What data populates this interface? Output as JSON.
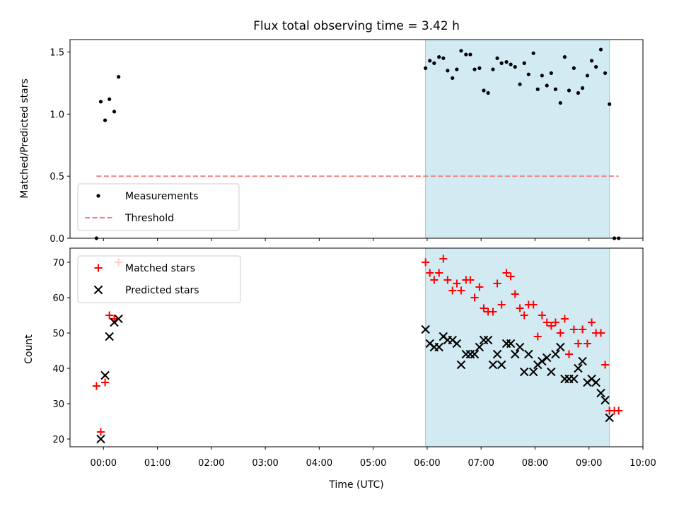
{
  "chart_data": {
    "title": "Flux total observing time = 3.42 h",
    "xlabel": "Time (UTC)",
    "x_tick_labels": [
      "00:00",
      "01:00",
      "02:00",
      "03:00",
      "04:00",
      "05:00",
      "06:00",
      "07:00",
      "08:00",
      "09:00",
      "10:00"
    ],
    "x_ticks_hours": [
      0,
      1,
      2,
      3,
      4,
      5,
      6,
      7,
      8,
      9,
      10
    ],
    "xlim_hours": [
      -0.62,
      10.0
    ],
    "shaded_interval_hours": [
      5.97,
      9.38
    ],
    "shade_color": "#add8e6",
    "panels": [
      {
        "type": "scatter",
        "ylabel": "Matched/Predicted stars",
        "ylim": [
          0,
          1.6
        ],
        "yticks": [
          0.0,
          0.5,
          1.0,
          1.5
        ],
        "ytick_labels": [
          "0.0",
          "0.5",
          "1.0",
          "1.5"
        ],
        "legend_position": "lower-left",
        "series": [
          {
            "name": "Measurements",
            "marker": "dot",
            "color": "#000000",
            "x": [
              -0.13,
              -0.05,
              0.03,
              0.11,
              0.2,
              0.28,
              9.47,
              9.55,
              5.97,
              6.05,
              6.13,
              6.22,
              6.3,
              6.38,
              6.47,
              6.55,
              6.63,
              6.72,
              6.8,
              6.88,
              6.97,
              7.05,
              7.13,
              7.22,
              7.3,
              7.38,
              7.47,
              7.55,
              7.63,
              7.72,
              7.8,
              7.88,
              7.97,
              8.05,
              8.13,
              8.22,
              8.3,
              8.38,
              8.47,
              8.55,
              8.63,
              8.72,
              8.8,
              8.88,
              8.97,
              9.05,
              9.13,
              9.22,
              9.3,
              9.38
            ],
            "y": [
              0.0,
              1.1,
              0.95,
              1.12,
              1.02,
              1.3,
              0.0,
              0.0,
              1.37,
              1.43,
              1.41,
              1.46,
              1.45,
              1.35,
              1.29,
              1.36,
              1.51,
              1.48,
              1.48,
              1.36,
              1.37,
              1.19,
              1.17,
              1.36,
              1.45,
              1.41,
              1.42,
              1.4,
              1.38,
              1.24,
              1.41,
              1.32,
              1.49,
              1.2,
              1.31,
              1.23,
              1.33,
              1.2,
              1.09,
              1.46,
              1.19,
              1.37,
              1.17,
              1.21,
              1.31,
              1.43,
              1.38,
              1.52,
              1.33,
              1.08
            ]
          },
          {
            "name": "Threshold",
            "type": "line",
            "dash": "dashed",
            "color": "#f08080",
            "x": [
              -0.13,
              9.55
            ],
            "y": [
              0.5,
              0.5
            ]
          }
        ]
      },
      {
        "type": "scatter",
        "ylabel": "Count",
        "ylim": [
          17.8,
          74
        ],
        "yticks": [
          20,
          30,
          40,
          50,
          60,
          70
        ],
        "ytick_labels": [
          "20",
          "30",
          "40",
          "50",
          "60",
          "70"
        ],
        "legend_position": "upper-left",
        "series": [
          {
            "name": "Matched stars",
            "marker": "plus",
            "color": "#ff0000",
            "x": [
              -0.13,
              -0.05,
              0.03,
              0.11,
              0.2,
              0.28,
              5.97,
              6.05,
              6.13,
              6.22,
              6.3,
              6.38,
              6.47,
              6.55,
              6.63,
              6.72,
              6.8,
              6.88,
              6.97,
              7.05,
              7.13,
              7.22,
              7.3,
              7.38,
              7.47,
              7.55,
              7.63,
              7.72,
              7.8,
              7.88,
              7.97,
              8.05,
              8.13,
              8.22,
              8.3,
              8.38,
              8.47,
              8.55,
              8.63,
              8.72,
              8.8,
              8.88,
              8.97,
              9.05,
              9.13,
              9.22,
              9.3,
              9.38,
              9.47,
              9.55
            ],
            "y": [
              35,
              22,
              36,
              55,
              54,
              70,
              70,
              67,
              65,
              67,
              71,
              65,
              62,
              64,
              62,
              65,
              65,
              60,
              63,
              57,
              56,
              56,
              64,
              58,
              67,
              66,
              61,
              57,
              55,
              58,
              58,
              49,
              55,
              53,
              52,
              53,
              50,
              54,
              44,
              51,
              47,
              51,
              47,
              53,
              50,
              50,
              41,
              28,
              28,
              28
            ]
          },
          {
            "name": "Predicted stars",
            "marker": "x",
            "color": "#000000",
            "x": [
              -0.05,
              0.03,
              0.11,
              0.2,
              0.28,
              5.97,
              6.05,
              6.13,
              6.22,
              6.3,
              6.38,
              6.47,
              6.55,
              6.63,
              6.72,
              6.8,
              6.88,
              6.97,
              7.05,
              7.13,
              7.22,
              7.3,
              7.38,
              7.47,
              7.55,
              7.63,
              7.72,
              7.8,
              7.88,
              7.97,
              8.05,
              8.13,
              8.22,
              8.3,
              8.38,
              8.47,
              8.55,
              8.63,
              8.72,
              8.8,
              8.88,
              8.97,
              9.05,
              9.13,
              9.22,
              9.3,
              9.38
            ],
            "y": [
              20,
              38,
              49,
              53,
              54,
              51,
              47,
              46,
              46,
              49,
              48,
              48,
              47,
              41,
              44,
              44,
              44,
              46,
              48,
              48,
              41,
              44,
              41,
              47,
              47,
              44,
              46,
              39,
              44,
              39,
              41,
              42,
              43,
              39,
              44,
              46,
              37,
              37,
              37,
              40,
              42,
              36,
              37,
              36,
              33,
              31,
              26
            ]
          }
        ]
      }
    ]
  }
}
